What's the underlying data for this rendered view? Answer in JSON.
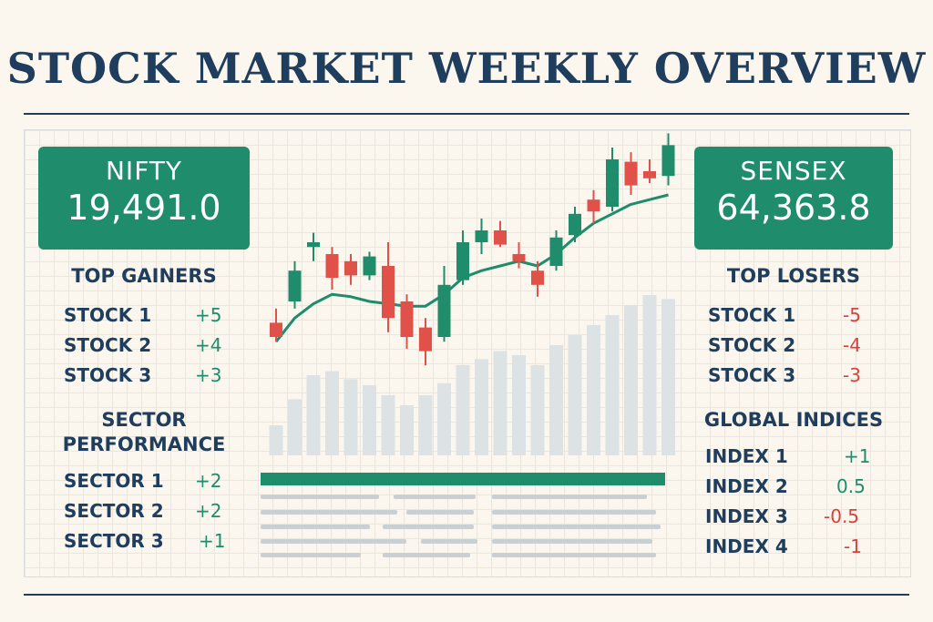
{
  "title": "STOCK MARKET WEEKLY OVERVIEW",
  "nifty": {
    "label": "NIFTY",
    "value": "19,491.0"
  },
  "sensex": {
    "label": "SENSEX",
    "value": "64,363.8"
  },
  "top_gainers": {
    "heading": "TOP GAINERS",
    "items": [
      {
        "name": "STOCK 1",
        "change": "+5"
      },
      {
        "name": "STOCK 2",
        "change": "+4"
      },
      {
        "name": "STOCK 3",
        "change": "+3"
      }
    ]
  },
  "sector_performance": {
    "heading_line1": "SECTOR",
    "heading_line2": "PERFORMANCE",
    "items": [
      {
        "name": "SECTOR 1",
        "change": "+2"
      },
      {
        "name": "SECTOR 2",
        "change": "+2"
      },
      {
        "name": "SECTOR 3",
        "change": "+1"
      }
    ]
  },
  "top_losers": {
    "heading": "TOP LOSERS",
    "items": [
      {
        "name": "STOCK 1",
        "change": "-5"
      },
      {
        "name": "STOCK 2",
        "change": "-4"
      },
      {
        "name": "STOCK 3",
        "change": "-3"
      }
    ]
  },
  "global_indices": {
    "heading": "GLOBAL INDICES",
    "items": [
      {
        "name": "INDEX 1",
        "change": "+1"
      },
      {
        "name": "INDEX 2",
        "change": "0.5"
      },
      {
        "name": "INDEX 3",
        "change": "-0.5"
      },
      {
        "name": "INDEX 4",
        "change": "-1"
      }
    ]
  },
  "colors": {
    "up": "#1f8c6b",
    "down": "#e0514a",
    "navy": "#1f3d5c",
    "volume": "#dde3e5"
  },
  "chart_data": {
    "type": "candlestick",
    "title": "",
    "xlabel": "",
    "ylabel": "",
    "ylim": [
      0,
      100
    ],
    "candles": [
      {
        "open": 36,
        "high": 42,
        "low": 28,
        "close": 30
      },
      {
        "open": 45,
        "high": 62,
        "low": 42,
        "close": 58
      },
      {
        "open": 68,
        "high": 74,
        "low": 62,
        "close": 70
      },
      {
        "open": 65,
        "high": 68,
        "low": 50,
        "close": 55
      },
      {
        "open": 62,
        "high": 65,
        "low": 52,
        "close": 56
      },
      {
        "open": 56,
        "high": 66,
        "low": 54,
        "close": 64
      },
      {
        "open": 60,
        "high": 70,
        "low": 32,
        "close": 38
      },
      {
        "open": 45,
        "high": 48,
        "low": 25,
        "close": 30
      },
      {
        "open": 34,
        "high": 38,
        "low": 18,
        "close": 24
      },
      {
        "open": 30,
        "high": 60,
        "low": 28,
        "close": 52
      },
      {
        "open": 54,
        "high": 75,
        "low": 52,
        "close": 70
      },
      {
        "open": 70,
        "high": 80,
        "low": 65,
        "close": 75
      },
      {
        "open": 75,
        "high": 79,
        "low": 68,
        "close": 69
      },
      {
        "open": 65,
        "high": 70,
        "low": 59,
        "close": 62
      },
      {
        "open": 58,
        "high": 62,
        "low": 47,
        "close": 52
      },
      {
        "open": 60,
        "high": 75,
        "low": 58,
        "close": 72
      },
      {
        "open": 73,
        "high": 85,
        "low": 70,
        "close": 82
      },
      {
        "open": 88,
        "high": 92,
        "low": 78,
        "close": 83
      },
      {
        "open": 85,
        "high": 110,
        "low": 83,
        "close": 105
      },
      {
        "open": 104,
        "high": 108,
        "low": 90,
        "close": 94
      },
      {
        "open": 100,
        "high": 105,
        "low": 95,
        "close": 97
      },
      {
        "open": 98,
        "high": 116,
        "low": 94,
        "close": 111
      }
    ],
    "trend_line": [
      28,
      38,
      44,
      48,
      47,
      45,
      44,
      43,
      43,
      48,
      55,
      58,
      60,
      62,
      60,
      65,
      72,
      78,
      82,
      86,
      88,
      90
    ],
    "volume": [
      15,
      28,
      40,
      42,
      38,
      35,
      30,
      25,
      30,
      36,
      45,
      48,
      52,
      50,
      45,
      55,
      60,
      65,
      70,
      75,
      80,
      78
    ]
  }
}
